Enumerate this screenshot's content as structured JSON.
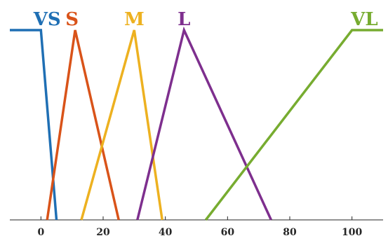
{
  "chart_data": {
    "type": "line",
    "title": "",
    "xlabel": "",
    "ylabel": "",
    "xlim": [
      -10,
      110
    ],
    "ylim": [
      0,
      1
    ],
    "xticks": [
      0,
      20,
      40,
      60,
      80,
      100
    ],
    "grid": false,
    "legend": "inline-labels-top",
    "series": [
      {
        "name": "VS",
        "color": "#1f6fb4",
        "x": [
          -10,
          0,
          5
        ],
        "y": [
          1,
          1,
          0
        ]
      },
      {
        "name": "S",
        "color": "#d95319",
        "x": [
          2,
          11,
          25
        ],
        "y": [
          0,
          1,
          0
        ]
      },
      {
        "name": "M",
        "color": "#edb120",
        "x": [
          13,
          30,
          39
        ],
        "y": [
          0,
          1,
          0
        ]
      },
      {
        "name": "L",
        "color": "#7e2f8e",
        "x": [
          31,
          46,
          74
        ],
        "y": [
          0,
          1,
          0
        ]
      },
      {
        "name": "VL",
        "color": "#77ac30",
        "x": [
          53,
          100,
          110
        ],
        "y": [
          0,
          1,
          1
        ]
      }
    ],
    "label_anchor_x": [
      2,
      10,
      30,
      46,
      104
    ]
  }
}
